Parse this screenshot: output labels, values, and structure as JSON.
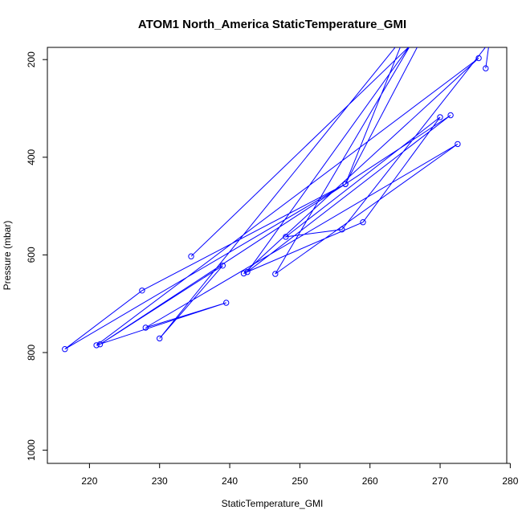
{
  "chart_data": {
    "type": "line",
    "title": "ATOM1 North_America StaticTemperature_GMI",
    "xlabel": "StaticTemperature_GMI",
    "ylabel": "Pressure (mbar)",
    "xlim": [
      214,
      279.5
    ],
    "ylim": [
      1027,
      175
    ],
    "y_reversed": true,
    "x_ticks": [
      220,
      230,
      240,
      250,
      260,
      270,
      280
    ],
    "y_ticks": [
      200,
      400,
      600,
      800,
      1000
    ],
    "grid": false,
    "legend": "none",
    "colors": {
      "series": "#0000ff",
      "axes": "#000000"
    },
    "series": [
      {
        "values": [
          {
            "x": 234.5,
            "y": 603
          },
          {
            "x": 268,
            "y": 140
          },
          {
            "x": 256.5,
            "y": 455
          },
          {
            "x": 227.5,
            "y": 673
          },
          {
            "x": 216.5,
            "y": 793
          },
          {
            "x": 256.5,
            "y": 455
          },
          {
            "x": 265,
            "y": 150
          },
          {
            "x": 230,
            "y": 771
          },
          {
            "x": 239,
            "y": 622
          },
          {
            "x": 221.5,
            "y": 783
          },
          {
            "x": 271.5,
            "y": 314
          },
          {
            "x": 242.5,
            "y": 635
          },
          {
            "x": 266,
            "y": 165
          },
          {
            "x": 246.5,
            "y": 639
          },
          {
            "x": 272.5,
            "y": 373
          },
          {
            "x": 228,
            "y": 749
          },
          {
            "x": 239.5,
            "y": 698
          },
          {
            "x": 221,
            "y": 785
          },
          {
            "x": 275.5,
            "y": 197
          },
          {
            "x": 242,
            "y": 638
          },
          {
            "x": 259,
            "y": 533
          },
          {
            "x": 270,
            "y": 318
          },
          {
            "x": 248,
            "y": 563
          },
          {
            "x": 256,
            "y": 548
          },
          {
            "x": 277,
            "y": 165
          },
          {
            "x": 276.5,
            "y": 218
          }
        ]
      }
    ]
  }
}
